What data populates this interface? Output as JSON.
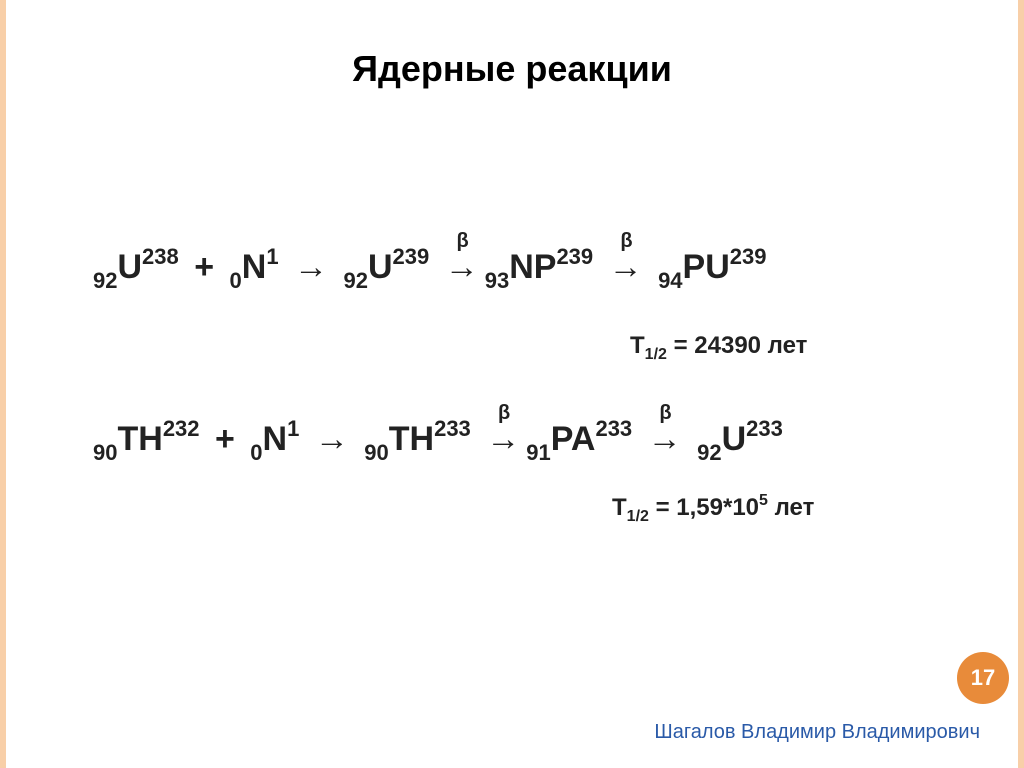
{
  "title": "Ядерные реакции",
  "equation1": {
    "t1": {
      "z": "92",
      "sym": "U",
      "a": "238"
    },
    "plus": "+",
    "t2": {
      "z": "0",
      "sym": "N",
      "a": "1"
    },
    "arrow": "→",
    "t3": {
      "z": "92",
      "sym": "U",
      "a": "239"
    },
    "beta1": "β",
    "t4": {
      "z": "93",
      "sym": "NP",
      "a": "239"
    },
    "beta2": "β",
    "t5": {
      "z": "94",
      "sym": "PU",
      "a": "239"
    }
  },
  "halflife1": {
    "prefix": "T",
    "sub": "1/2",
    "text": " = 24390 лет"
  },
  "equation2": {
    "t1": {
      "z": "90",
      "sym": "TH",
      "a": "232"
    },
    "plus": "+",
    "t2": {
      "z": "0",
      "sym": "N",
      "a": "1"
    },
    "arrow": "→",
    "t3": {
      "z": "90",
      "sym": "TH",
      "a": "233"
    },
    "beta1": "β",
    "t4": {
      "z": "91",
      "sym": "PA",
      "a": "233"
    },
    "beta2": "β",
    "t5": {
      "z": "92",
      "sym": "U",
      "a": "233"
    }
  },
  "halflife2": {
    "prefix": "T",
    "sub": "1/2",
    "text_a": " = 1,59*10",
    "sup": "5",
    "text_b": " лет"
  },
  "page_number": "17",
  "author": "Шагалов Владимир Владимирович",
  "style": {
    "background": "#ffffff",
    "accent": "#f8cfa8",
    "badge": "#e88b3a",
    "author_color": "#2a5aa8",
    "title_fontsize": 36,
    "equation_fontsize": 34,
    "subscript_fontsize": 22,
    "halflife_fontsize": 24
  }
}
